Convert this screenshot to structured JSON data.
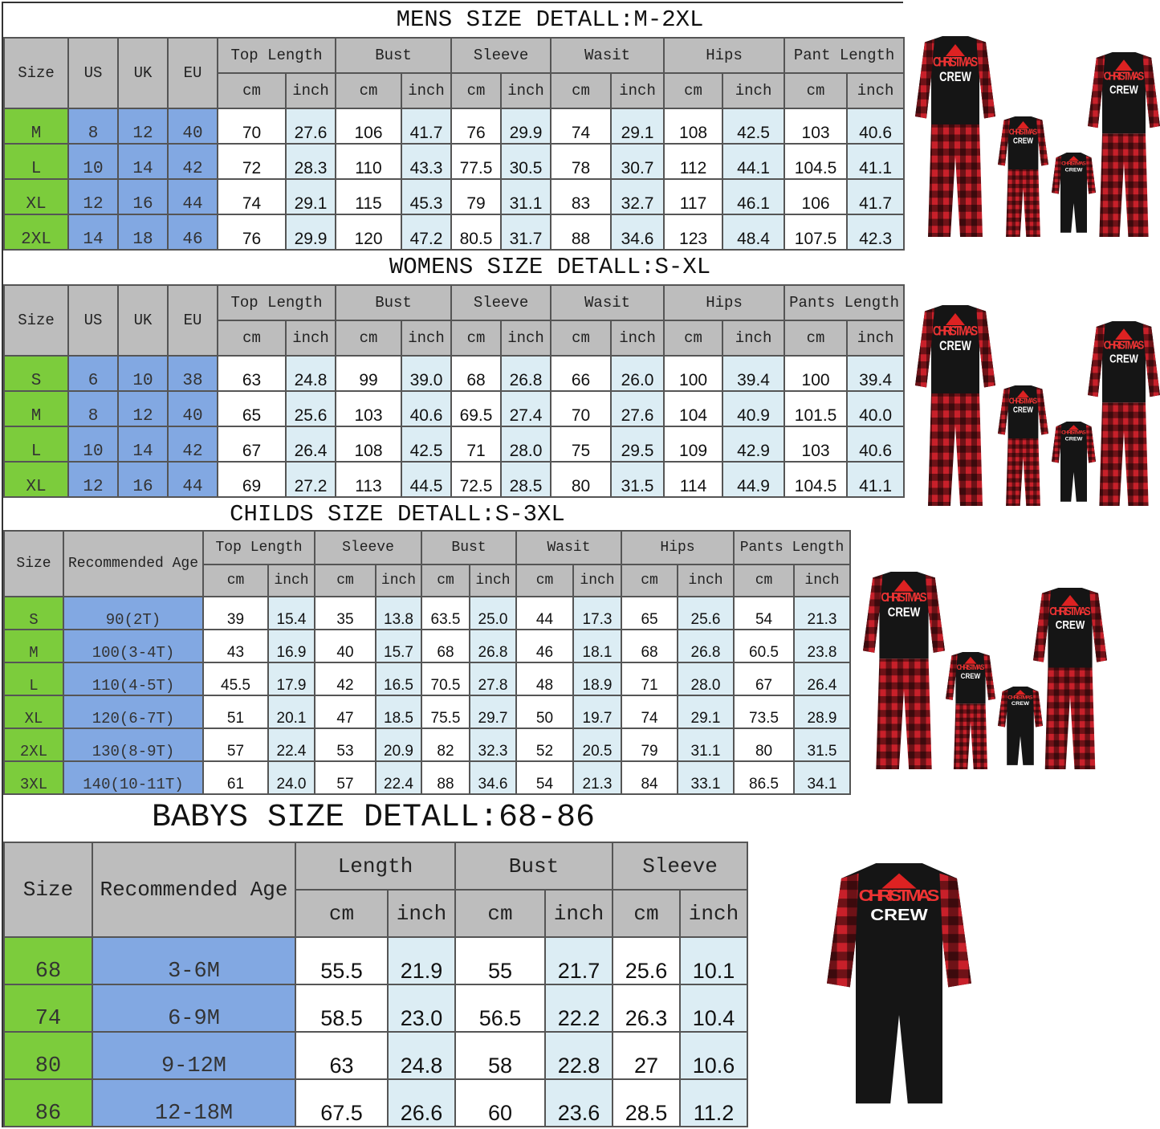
{
  "units": {
    "cm": "cm",
    "inch": "inch"
  },
  "mens": {
    "title": "MENS SIZE DETALL:M-2XL",
    "fixed": [
      "Size",
      "US",
      "UK",
      "EU"
    ],
    "groups": [
      "Top Length",
      "Bust",
      "Sleeve",
      "Wasit",
      "Hips",
      "Pant Length"
    ],
    "rows": [
      [
        "M",
        "8",
        "12",
        "40",
        "70",
        "27.6",
        "106",
        "41.7",
        "76",
        "29.9",
        "74",
        "29.1",
        "108",
        "42.5",
        "103",
        "40.6"
      ],
      [
        "L",
        "10",
        "14",
        "42",
        "72",
        "28.3",
        "110",
        "43.3",
        "77.5",
        "30.5",
        "78",
        "30.7",
        "112",
        "44.1",
        "104.5",
        "41.1"
      ],
      [
        "XL",
        "12",
        "16",
        "44",
        "74",
        "29.1",
        "115",
        "45.3",
        "79",
        "31.1",
        "83",
        "32.7",
        "117",
        "46.1",
        "106",
        "41.7"
      ],
      [
        "2XL",
        "14",
        "18",
        "46",
        "76",
        "29.9",
        "120",
        "47.2",
        "80.5",
        "31.7",
        "88",
        "34.6",
        "123",
        "48.4",
        "107.5",
        "42.3"
      ]
    ]
  },
  "womens": {
    "title": "WOMENS SIZE DETALL:S-XL",
    "fixed": [
      "Size",
      "US",
      "UK",
      "EU"
    ],
    "groups": [
      "Top Length",
      "Bust",
      "Sleeve",
      "Wasit",
      "Hips",
      "Pants Length"
    ],
    "rows": [
      [
        "S",
        "6",
        "10",
        "38",
        "63",
        "24.8",
        "99",
        "39.0",
        "68",
        "26.8",
        "66",
        "26.0",
        "100",
        "39.4",
        "100",
        "39.4"
      ],
      [
        "M",
        "8",
        "12",
        "40",
        "65",
        "25.6",
        "103",
        "40.6",
        "69.5",
        "27.4",
        "70",
        "27.6",
        "104",
        "40.9",
        "101.5",
        "40.0"
      ],
      [
        "L",
        "10",
        "14",
        "42",
        "67",
        "26.4",
        "108",
        "42.5",
        "71",
        "28.0",
        "75",
        "29.5",
        "109",
        "42.9",
        "103",
        "40.6"
      ],
      [
        "XL",
        "12",
        "16",
        "44",
        "69",
        "27.2",
        "113",
        "44.5",
        "72.5",
        "28.5",
        "80",
        "31.5",
        "114",
        "44.9",
        "104.5",
        "41.1"
      ]
    ]
  },
  "childs": {
    "title": "CHILDS SIZE DETALL:S-3XL",
    "fixed": [
      "Size",
      "Recommended Age"
    ],
    "groups": [
      "Top Length",
      "Sleeve",
      "Bust",
      "Wasit",
      "Hips",
      "Pants Length"
    ],
    "rows": [
      [
        "S",
        "90(2T)",
        "39",
        "15.4",
        "35",
        "13.8",
        "63.5",
        "25.0",
        "44",
        "17.3",
        "65",
        "25.6",
        "54",
        "21.3"
      ],
      [
        "M",
        "100(3-4T)",
        "43",
        "16.9",
        "40",
        "15.7",
        "68",
        "26.8",
        "46",
        "18.1",
        "68",
        "26.8",
        "60.5",
        "23.8"
      ],
      [
        "L",
        "110(4-5T)",
        "45.5",
        "17.9",
        "42",
        "16.5",
        "70.5",
        "27.8",
        "48",
        "18.9",
        "71",
        "28.0",
        "67",
        "26.4"
      ],
      [
        "XL",
        "120(6-7T)",
        "51",
        "20.1",
        "47",
        "18.5",
        "75.5",
        "29.7",
        "50",
        "19.7",
        "74",
        "29.1",
        "73.5",
        "28.9"
      ],
      [
        "2XL",
        "130(8-9T)",
        "57",
        "22.4",
        "53",
        "20.9",
        "82",
        "32.3",
        "52",
        "20.5",
        "79",
        "31.1",
        "80",
        "31.5"
      ],
      [
        "3XL",
        "140(10-11T)",
        "61",
        "24.0",
        "57",
        "22.4",
        "88",
        "34.6",
        "54",
        "21.3",
        "84",
        "33.1",
        "86.5",
        "34.1"
      ]
    ]
  },
  "babys": {
    "title": "BABYS SIZE DETALL:68-86",
    "fixed": [
      "Size",
      "Recommended Age"
    ],
    "groups": [
      "Length",
      "Bust",
      "Sleeve"
    ],
    "rows": [
      [
        "68",
        "3-6M",
        "55.5",
        "21.9",
        "55",
        "21.7",
        "25.6",
        "10.1"
      ],
      [
        "74",
        "6-9M",
        "58.5",
        "23.0",
        "56.5",
        "22.2",
        "26.3",
        "10.4"
      ],
      [
        "80",
        "9-12M",
        "63",
        "24.8",
        "58",
        "22.8",
        "27",
        "10.6"
      ],
      [
        "86",
        "12-18M",
        "67.5",
        "26.6",
        "60",
        "23.6",
        "28.5",
        "11.2"
      ]
    ]
  },
  "product_logo": {
    "line1": "CHRISTMAS",
    "line2": "CREW"
  },
  "colors": {
    "header_gray": "#bdbdbd",
    "size_green": "#7ccc3c",
    "region_blue": "#82a8e2",
    "inch_light_blue": "#dcedf4",
    "plaid_red": "#c8202a",
    "shirt_black": "#151515"
  }
}
